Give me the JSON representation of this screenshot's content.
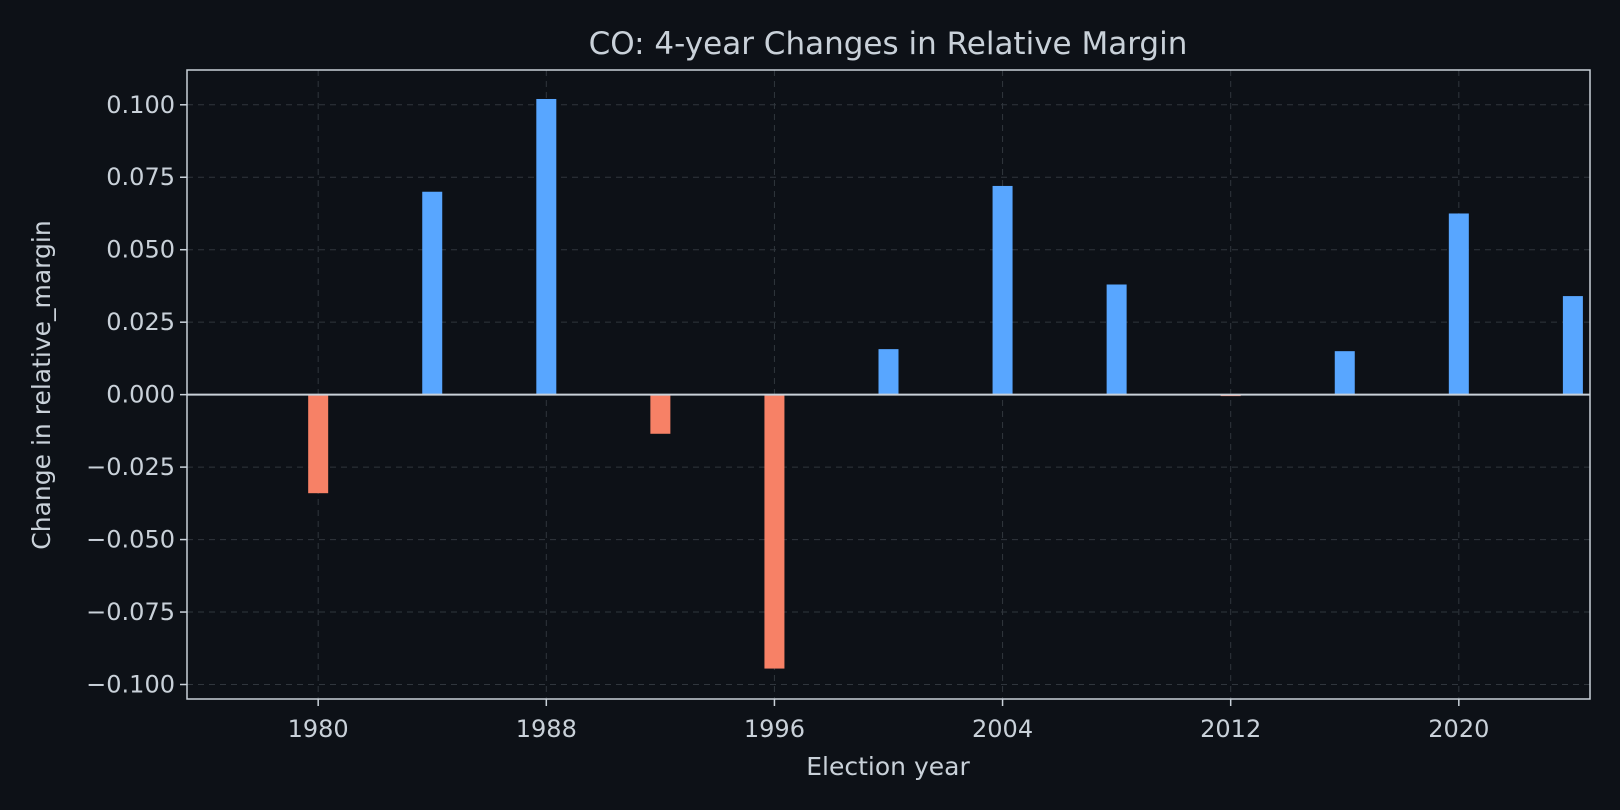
{
  "chart_data": {
    "type": "bar",
    "title": "CO: 4-year Changes in Relative Margin",
    "xlabel": "Election year",
    "ylabel": "Change in relative_margin",
    "x": [
      1980,
      1984,
      1988,
      1992,
      1996,
      2000,
      2004,
      2008,
      2012,
      2016,
      2020,
      2024
    ],
    "values": [
      -0.034,
      0.07,
      0.102,
      -0.0135,
      -0.0945,
      0.0157,
      0.072,
      0.038,
      -0.0005,
      0.015,
      0.0625,
      0.034
    ],
    "xticks": [
      "1980",
      "1988",
      "1996",
      "2004",
      "2012",
      "2020"
    ],
    "yticks": [
      "0.100",
      "0.075",
      "0.050",
      "0.025",
      "0.000",
      "−0.025",
      "−0.050",
      "−0.075",
      "−0.100"
    ],
    "ylim": [
      -0.105,
      0.112
    ],
    "xlim": [
      1975.4,
      2024.6
    ],
    "grid": true,
    "colors": {
      "positive": "#58a6ff",
      "negative": "#f78166",
      "background": "#0d1117",
      "zero_line": "#c9d1d9"
    }
  }
}
